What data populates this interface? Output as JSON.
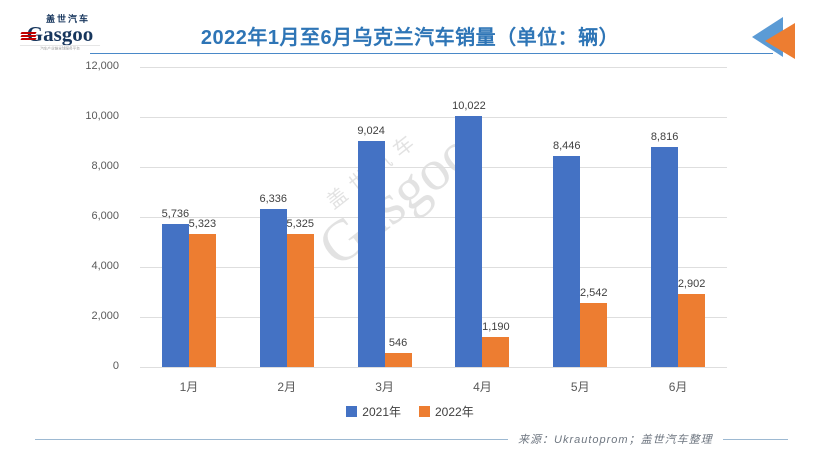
{
  "header": {
    "logo": {
      "brand_cn": "盖世汽车",
      "brand_en": "Gasgoo",
      "tagline": "汽车产业链全球服务平台"
    },
    "title": "2022年1月至6月乌克兰汽车销量（单位：辆）"
  },
  "colors": {
    "title_blue": "#2E75B6",
    "bar_2021": "#4472C4",
    "bar_2022": "#ED7D31",
    "corner_triangle_blue": "#5B9BD5",
    "corner_triangle_orange": "#ED7D31",
    "logo_navy": "#17365D",
    "logo_red": "#C00000"
  },
  "chart_data": {
    "type": "bar",
    "title": "2022年1月至6月乌克兰汽车销量（单位：辆）",
    "categories": [
      "1月",
      "2月",
      "3月",
      "4月",
      "5月",
      "6月"
    ],
    "series": [
      {
        "name": "2021年",
        "color": "#4472C4",
        "values": [
          5736,
          6336,
          9024,
          10022,
          8446,
          8816
        ],
        "labels": [
          "5,736",
          "6,336",
          "9,024",
          "10,022",
          "8,446",
          "8,816"
        ]
      },
      {
        "name": "2022年",
        "color": "#ED7D31",
        "values": [
          5323,
          5325,
          546,
          1190,
          2542,
          2902
        ],
        "labels": [
          "5,323",
          "5,325",
          "546",
          "1,190",
          "2,542",
          "2,902"
        ]
      }
    ],
    "xlabel": "",
    "ylabel": "",
    "ylim": [
      0,
      12000
    ],
    "ytick_step": 2000,
    "ytick_labels": [
      "0",
      "2,000",
      "4,000",
      "6,000",
      "8,000",
      "10,000",
      "12,000"
    ],
    "grid": true,
    "legend_position": "bottom"
  },
  "watermark": {
    "line1_cn": "盖世汽车",
    "line2_en": "Gasgoo"
  },
  "footer": {
    "source": "来源：Ukrautoprom；盖世汽车整理"
  }
}
